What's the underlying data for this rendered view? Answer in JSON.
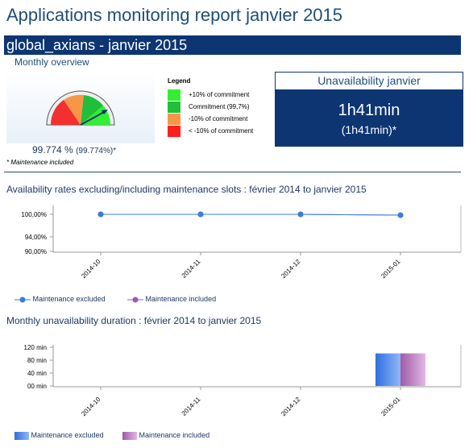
{
  "header": {
    "title": "Applications monitoring report janvier 2015"
  },
  "client_bar": {
    "label": "global_axians - janvier 2015"
  },
  "overview": {
    "heading": "Monthly overview",
    "gauge_value": "99.774 %",
    "gauge_value_included": "(99.774%)*",
    "note": "* Maintenance included",
    "legend_title": "Legend",
    "legend": [
      {
        "label": "+10% of commitment",
        "color": "#33ee33"
      },
      {
        "label": "Commitment (99,7%)",
        "color": "#1fbf3a"
      },
      {
        "label": "-10% of commitment",
        "color": "#f79646"
      },
      {
        "label": "<  -10% of commitment",
        "color": "#ff1f1f"
      }
    ]
  },
  "unavailability": {
    "title": "Unavailability janvier",
    "value": "1h41min",
    "value_included": "(1h41min)*"
  },
  "availability_chart": {
    "section_title": "Availability rates excluding/including maintenance slots : février 2014 to janvier 2015",
    "chart_data": {
      "type": "line",
      "categories": [
        "2014-10",
        "2014-11",
        "2014-12",
        "2015-01"
      ],
      "y_ticks": [
        "100,00%",
        "94,00%",
        "90,00%"
      ],
      "series": [
        {
          "name": "Maintenance excluded",
          "values": [
            100,
            100,
            100,
            99.774
          ],
          "color": "#3b7ddd"
        },
        {
          "name": "Maintenance included",
          "values": [
            100,
            100,
            100,
            99.774
          ],
          "color": "#9b59b6"
        }
      ]
    }
  },
  "unavailability_chart": {
    "section_title": "Monthly unavailability duration : février 2014 to janvier 2015",
    "chart_data": {
      "type": "bar",
      "categories": [
        "2014-10",
        "2014-11",
        "2014-12",
        "2015-01"
      ],
      "y_ticks": [
        "120 min",
        "80 min",
        "40 min",
        "00 min"
      ],
      "ylim": [
        0,
        120
      ],
      "series": [
        {
          "name": "Maintenance excluded",
          "values": [
            0,
            0,
            0,
            101
          ],
          "color": "#3b7ddd"
        },
        {
          "name": "Maintenance included",
          "values": [
            0,
            0,
            0,
            101
          ],
          "color": "#b070b8"
        }
      ]
    }
  }
}
